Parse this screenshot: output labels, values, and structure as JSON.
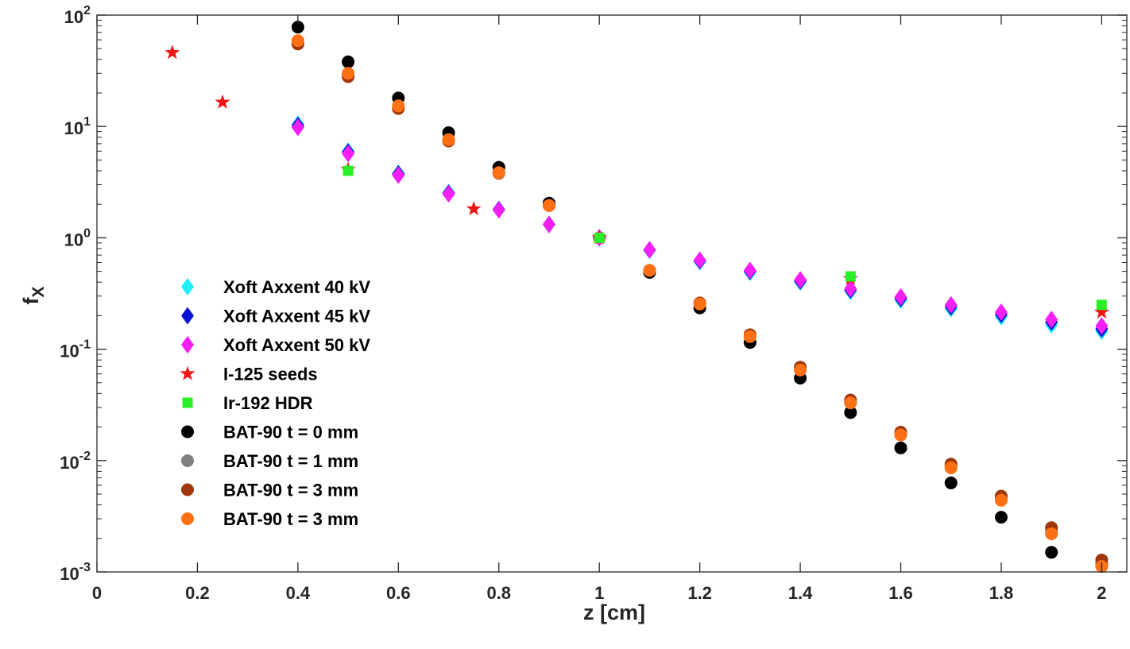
{
  "chart_data": {
    "type": "scatter",
    "title": "",
    "xlabel": "z [cm]",
    "ylabel_main": "f",
    "ylabel_sub": "X",
    "xlim": [
      0,
      2.05
    ],
    "ylim": [
      0.001,
      100
    ],
    "yscale": "log",
    "grid": false,
    "legend_position": "left-middle",
    "x_ticks": [
      {
        "value": 0,
        "label": "0"
      },
      {
        "value": 0.2,
        "label": "0.2"
      },
      {
        "value": 0.4,
        "label": "0.4"
      },
      {
        "value": 0.6,
        "label": "0.6"
      },
      {
        "value": 0.8,
        "label": "0.8"
      },
      {
        "value": 1,
        "label": "1"
      },
      {
        "value": 1.2,
        "label": "1.2"
      },
      {
        "value": 1.4,
        "label": "1.4"
      },
      {
        "value": 1.6,
        "label": "1.6"
      },
      {
        "value": 1.8,
        "label": "1.8"
      },
      {
        "value": 2,
        "label": "2"
      }
    ],
    "y_ticks": [
      {
        "value": 100,
        "base": "10",
        "exp": "2"
      },
      {
        "value": 10,
        "base": "10",
        "exp": "1"
      },
      {
        "value": 1,
        "base": "10",
        "exp": "0"
      },
      {
        "value": 0.1,
        "base": "10",
        "exp": "-1"
      },
      {
        "value": 0.01,
        "base": "10",
        "exp": "-2"
      },
      {
        "value": 0.001,
        "base": "10",
        "exp": "-3"
      }
    ],
    "series": [
      {
        "name": "BAT-90 t = 0 mm",
        "marker": "circle",
        "color": "#000000",
        "x": [
          0.4,
          0.5,
          0.6,
          0.7,
          0.8,
          0.9,
          1.0,
          1.1,
          1.2,
          1.3,
          1.4,
          1.5,
          1.6,
          1.7,
          1.8,
          1.9,
          2.0
        ],
        "y": [
          78,
          38,
          18,
          8.8,
          4.3,
          2.05,
          1.0,
          0.49,
          0.235,
          0.115,
          0.055,
          0.027,
          0.013,
          0.0063,
          0.0031,
          0.0015,
          0.00118
        ]
      },
      {
        "name": "BAT-90 t = 1 mm",
        "marker": "circle",
        "color": "#808080",
        "x": [
          0.4,
          0.5,
          0.6,
          0.7,
          0.8,
          0.9,
          1.0,
          1.1,
          1.2,
          1.3,
          1.4,
          1.5,
          1.6,
          1.7,
          1.8,
          1.9,
          2.0
        ],
        "y": [
          57,
          29,
          15,
          7.6,
          3.85,
          1.95,
          1.0,
          0.51,
          0.255,
          0.13,
          0.066,
          0.033,
          0.017,
          0.0088,
          0.0045,
          0.0023,
          0.00118
        ]
      },
      {
        "name": "BAT-90 t = 3 mm",
        "marker": "circle",
        "color": "#a0380e",
        "x": [
          0.4,
          0.5,
          0.6,
          0.7,
          0.8,
          0.9,
          1.0,
          1.1,
          1.2,
          1.3,
          1.4,
          1.5,
          1.6,
          1.7,
          1.8,
          1.9,
          2.0
        ],
        "y": [
          55,
          28,
          14.5,
          7.4,
          3.8,
          1.95,
          1.0,
          0.51,
          0.26,
          0.135,
          0.069,
          0.035,
          0.018,
          0.0093,
          0.0048,
          0.0025,
          0.00128
        ]
      },
      {
        "name": "BAT-90 t = 3 mm",
        "marker": "circle",
        "color": "#ff7014",
        "x": [
          0.4,
          0.5,
          0.6,
          0.7,
          0.8,
          0.9,
          1.0,
          1.1,
          1.2,
          1.3,
          1.4,
          1.5,
          1.6,
          1.7,
          1.8,
          1.9,
          2.0
        ],
        "y": [
          59,
          30,
          15.3,
          7.6,
          3.85,
          1.95,
          1.0,
          0.51,
          0.255,
          0.13,
          0.065,
          0.033,
          0.017,
          0.0086,
          0.0044,
          0.0022,
          0.00112
        ]
      },
      {
        "name": "Xoft Axxent 40 kV",
        "marker": "diamond",
        "color": "#1ef0f5",
        "x": [
          0.4,
          0.5,
          0.6,
          0.7,
          0.8,
          0.9,
          1.0,
          1.1,
          1.2,
          1.3,
          1.4,
          1.5,
          1.6,
          1.7,
          1.8,
          1.9,
          2.0
        ],
        "y": [
          10.5,
          6.0,
          3.8,
          2.55,
          1.8,
          1.32,
          1.0,
          0.77,
          0.61,
          0.49,
          0.4,
          0.33,
          0.275,
          0.23,
          0.195,
          0.165,
          0.145
        ]
      },
      {
        "name": "Xoft Axxent 45 kV",
        "marker": "diamond",
        "color": "#0a14d2",
        "x": [
          0.4,
          0.5,
          0.6,
          0.7,
          0.8,
          0.9,
          1.0,
          1.1,
          1.2,
          1.3,
          1.4,
          1.5,
          1.6,
          1.7,
          1.8,
          1.9,
          2.0
        ],
        "y": [
          10.2,
          5.9,
          3.75,
          2.52,
          1.8,
          1.32,
          1.0,
          0.78,
          0.62,
          0.5,
          0.41,
          0.34,
          0.285,
          0.24,
          0.205,
          0.175,
          0.152
        ]
      },
      {
        "name": "Xoft Axxent 50 kV",
        "marker": "diamond",
        "color": "#f51ef5",
        "x": [
          0.4,
          0.5,
          0.6,
          0.7,
          0.8,
          0.9,
          1.0,
          1.1,
          1.2,
          1.3,
          1.4,
          1.5,
          1.6,
          1.7,
          1.8,
          1.9,
          2.0
        ],
        "y": [
          9.8,
          5.7,
          3.65,
          2.48,
          1.78,
          1.32,
          1.0,
          0.78,
          0.63,
          0.51,
          0.42,
          0.35,
          0.295,
          0.25,
          0.215,
          0.185,
          0.162
        ]
      },
      {
        "name": "I-125 seeds",
        "marker": "star",
        "color": "#f01414",
        "x": [
          0.15,
          0.25,
          0.5,
          0.75,
          1.0,
          1.5,
          2.0
        ],
        "y": [
          46,
          16.5,
          4.1,
          1.82,
          1.0,
          0.43,
          0.215
        ]
      },
      {
        "name": "Ir-192 HDR",
        "marker": "square",
        "color": "#28f028",
        "x": [
          0.5,
          1.0,
          1.5,
          2.0
        ],
        "y": [
          4.0,
          1.0,
          0.45,
          0.25
        ]
      }
    ],
    "legend_order": [
      "Xoft Axxent 40 kV",
      "Xoft Axxent 45 kV",
      "Xoft Axxent 50 kV",
      "I-125 seeds",
      "Ir-192 HDR",
      "BAT-90 t = 0 mm",
      "BAT-90 t = 1 mm",
      "BAT-90 t = 3 mm",
      "BAT-90 t = 3 mm"
    ],
    "legend_order_index": [
      4,
      5,
      6,
      7,
      8,
      0,
      1,
      2,
      3
    ]
  }
}
